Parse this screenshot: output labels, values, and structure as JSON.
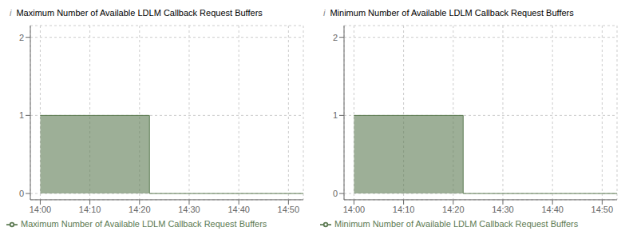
{
  "chart_data": [
    {
      "type": "area",
      "title": "Maximum Number of Available LDLM Callback Request Buffers",
      "annotations": [
        "i"
      ],
      "x": [
        0,
        22,
        22,
        53
      ],
      "series": [
        {
          "name": "Maximum Number of Available LDLM Callback Request Buffers",
          "color": "#5c7a52",
          "values": [
            1,
            1,
            0,
            0
          ]
        }
      ],
      "xlim": [
        -2,
        53
      ],
      "xticks": [
        {
          "value": 0,
          "label": "14:00"
        },
        {
          "value": 10,
          "label": "14:10"
        },
        {
          "value": 20,
          "label": "14:20"
        },
        {
          "value": 30,
          "label": "14:30"
        },
        {
          "value": 40,
          "label": "14:40"
        },
        {
          "value": 50,
          "label": "14:50"
        }
      ],
      "ylim": [
        -0.08,
        2.15
      ],
      "yticks": [
        0,
        1,
        2
      ],
      "grid": true,
      "legend": "lower left"
    },
    {
      "type": "area",
      "title": "Minimum Number of Available LDLM Callback Request Buffers",
      "annotations": [
        "i"
      ],
      "x": [
        0,
        22,
        22,
        53
      ],
      "series": [
        {
          "name": "Minimum Number of Available LDLM Callback Request Buffers",
          "color": "#5c7a52",
          "values": [
            1,
            1,
            0,
            0
          ]
        }
      ],
      "xlim": [
        -2,
        53
      ],
      "xticks": [
        {
          "value": 0,
          "label": "14:00"
        },
        {
          "value": 10,
          "label": "14:10"
        },
        {
          "value": 20,
          "label": "14:20"
        },
        {
          "value": 30,
          "label": "14:30"
        },
        {
          "value": 40,
          "label": "14:40"
        },
        {
          "value": 50,
          "label": "14:50"
        }
      ],
      "ylim": [
        -0.08,
        2.15
      ],
      "yticks": [
        0,
        1,
        2
      ],
      "grid": true,
      "legend": "lower left"
    }
  ]
}
